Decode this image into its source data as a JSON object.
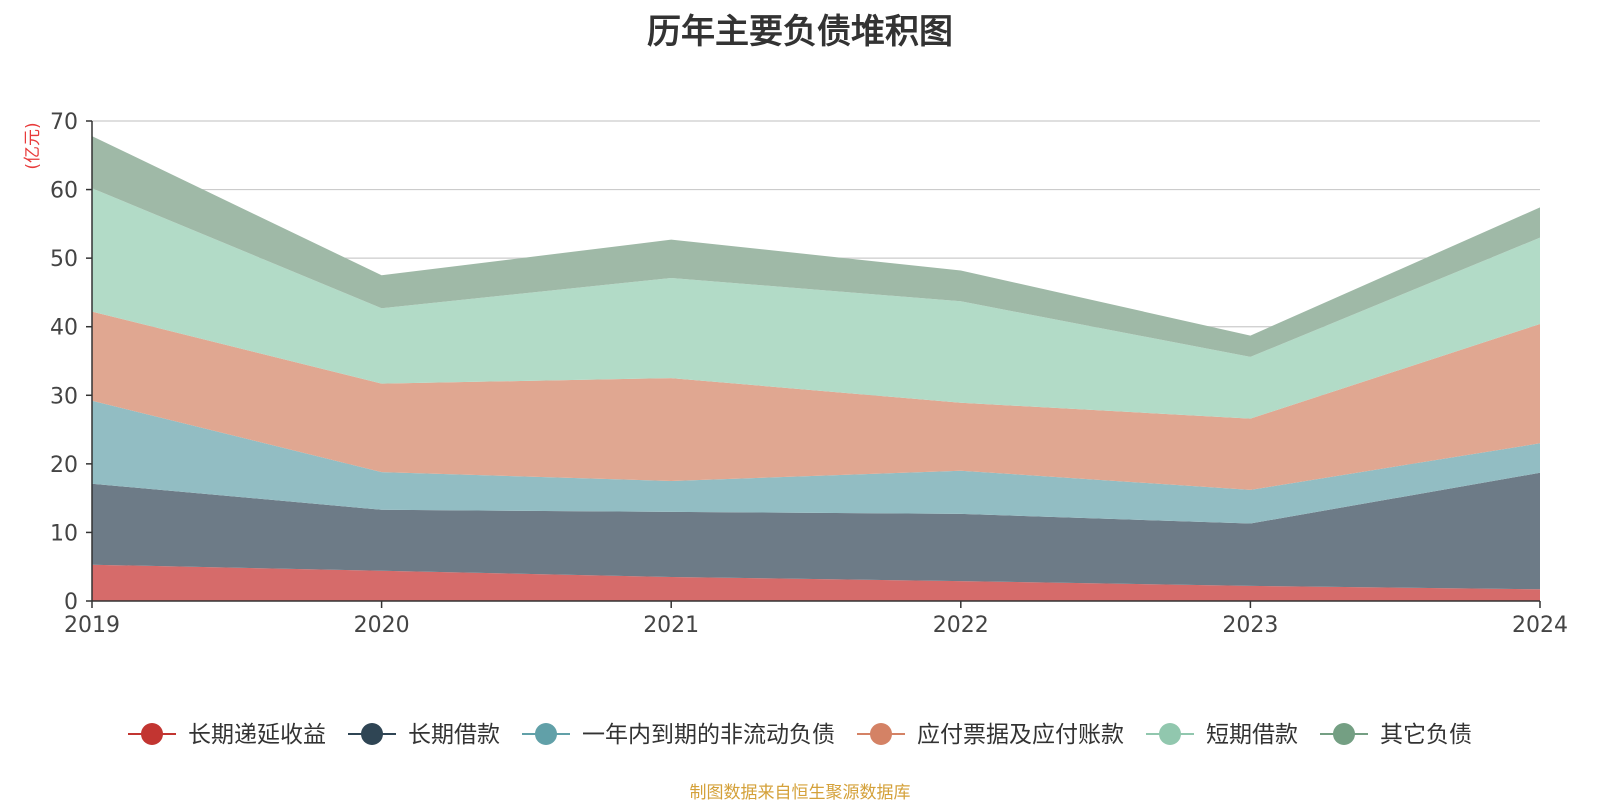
{
  "chart_data": {
    "type": "area",
    "stacked": true,
    "title": "历年主要负债堆积图",
    "unit": "(亿元)",
    "source": "制图数据来自恒生聚源数据库",
    "categories": [
      "2019",
      "2020",
      "2021",
      "2022",
      "2023",
      "2024"
    ],
    "ylim": [
      0,
      70
    ],
    "yticks": [
      0,
      10,
      20,
      30,
      40,
      50,
      60,
      70
    ],
    "grid": true,
    "legend_position": "bottom",
    "series": [
      {
        "name": "长期递延收益",
        "color": "#c23531",
        "fill": "#d66b6a",
        "values": [
          5.3,
          4.4,
          3.5,
          2.9,
          2.2,
          1.7
        ]
      },
      {
        "name": "长期借款",
        "color": "#2f4554",
        "fill": "#6d7b87",
        "values": [
          11.8,
          8.9,
          9.5,
          9.8,
          9.1,
          17.0
        ]
      },
      {
        "name": "一年内到期的非流动负债",
        "color": "#61a0a8",
        "fill": "#92bdc3",
        "values": [
          12.1,
          5.5,
          4.5,
          6.3,
          4.9,
          4.3
        ]
      },
      {
        "name": "应付票据及应付账款",
        "color": "#d48265",
        "fill": "#e0a791",
        "values": [
          13.0,
          12.9,
          15.0,
          9.9,
          10.4,
          17.4
        ]
      },
      {
        "name": "短期借款",
        "color": "#91c7ae",
        "fill": "#b2dbc7",
        "values": [
          18.0,
          11.0,
          14.6,
          14.8,
          9.0,
          12.6
        ]
      },
      {
        "name": "其它负债",
        "color": "#749f83",
        "fill": "#9fb9a7",
        "values": [
          7.6,
          4.8,
          5.6,
          4.5,
          3.1,
          4.4
        ]
      }
    ]
  }
}
